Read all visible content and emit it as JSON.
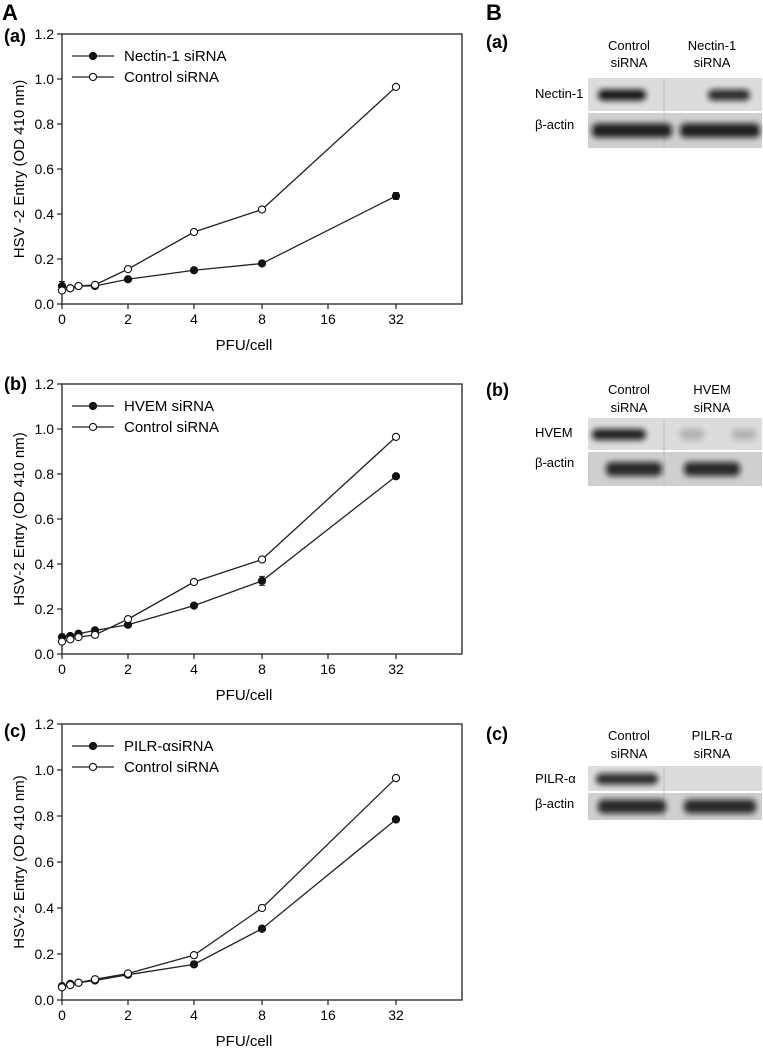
{
  "figure": {
    "panel_a_letter": "A",
    "panel_b_letter": "B"
  },
  "chart_data": [
    {
      "type": "line",
      "panel": "(a)",
      "xlabel": "PFU/cell",
      "ylabel": "HSV -2 Entry (OD 410 nm)",
      "x_ticks": [
        "0",
        "2",
        "4",
        "8",
        "16",
        "32"
      ],
      "y_ticks": [
        "0.0",
        "0.2",
        "0.4",
        "0.6",
        "0.8",
        "1.0",
        "1.2"
      ],
      "ylim": [
        0,
        1.2
      ],
      "x": [
        0,
        0.25,
        0.5,
        1,
        2,
        4,
        8,
        32
      ],
      "series": [
        {
          "name": "Nectin-1 siRNA",
          "marker": "filled",
          "values": [
            0.08,
            0.07,
            0.08,
            0.08,
            0.11,
            0.15,
            0.18,
            0.48
          ],
          "error": [
            0.02,
            0.01,
            0.01,
            0.01,
            0.01,
            0.01,
            0.01,
            0.015
          ]
        },
        {
          "name": "Control siRNA",
          "marker": "open",
          "values": [
            0.06,
            0.07,
            0.08,
            0.085,
            0.155,
            0.32,
            0.42,
            0.965
          ]
        }
      ]
    },
    {
      "type": "line",
      "panel": "(b)",
      "xlabel": "PFU/cell",
      "ylabel": "HSV-2 Entry (OD 410 nm)",
      "x_ticks": [
        "0",
        "2",
        "4",
        "8",
        "16",
        "32"
      ],
      "y_ticks": [
        "0.0",
        "0.2",
        "0.4",
        "0.6",
        "0.8",
        "1.0",
        "1.2"
      ],
      "ylim": [
        0,
        1.2
      ],
      "x": [
        0,
        0.25,
        0.5,
        1,
        2,
        4,
        8,
        32
      ],
      "series": [
        {
          "name": "HVEM siRNA",
          "marker": "filled",
          "values": [
            0.075,
            0.08,
            0.09,
            0.105,
            0.13,
            0.215,
            0.325,
            0.79
          ],
          "error": [
            0.01,
            0.01,
            0.01,
            0.01,
            0.01,
            0.01,
            0.02,
            0.01
          ]
        },
        {
          "name": "Control siRNA",
          "marker": "open",
          "values": [
            0.055,
            0.065,
            0.075,
            0.085,
            0.155,
            0.32,
            0.42,
            0.965
          ]
        }
      ]
    },
    {
      "type": "line",
      "panel": "(c)",
      "xlabel": "PFU/cell",
      "ylabel": "HSV-2 Entry (OD 410 nm)",
      "x_ticks": [
        "0",
        "2",
        "4",
        "8",
        "16",
        "32"
      ],
      "y_ticks": [
        "0.0",
        "0.2",
        "0.4",
        "0.6",
        "0.8",
        "1.0",
        "1.2"
      ],
      "ylim": [
        0,
        1.2
      ],
      "x": [
        0,
        0.25,
        0.5,
        1,
        2,
        4,
        8,
        32
      ],
      "series": [
        {
          "name": "PILR-αsiRNA",
          "marker": "filled",
          "values": [
            0.06,
            0.07,
            0.075,
            0.085,
            0.11,
            0.155,
            0.31,
            0.785
          ],
          "error": [
            0.01,
            0.01,
            0.01,
            0.01,
            0.01,
            0.01,
            0.01,
            0.01
          ]
        },
        {
          "name": "Control siRNA",
          "marker": "open",
          "values": [
            0.055,
            0.065,
            0.075,
            0.09,
            0.115,
            0.195,
            0.4,
            0.965
          ]
        }
      ]
    }
  ],
  "blots": [
    {
      "panel": "(a)",
      "lanes": [
        "Control\nsiRNA",
        "Nectin-1\nsiRNA"
      ],
      "rows": [
        "Nectin-1",
        "β-actin"
      ]
    },
    {
      "panel": "(b)",
      "lanes": [
        "Control\nsiRNA",
        "HVEM\nsiRNA"
      ],
      "rows": [
        "HVEM",
        "β-actin"
      ]
    },
    {
      "panel": "(c)",
      "lanes": [
        "Control\nsiRNA",
        "PILR-α\nsiRNA"
      ],
      "rows": [
        "PILR-α",
        "β-actin"
      ]
    }
  ]
}
